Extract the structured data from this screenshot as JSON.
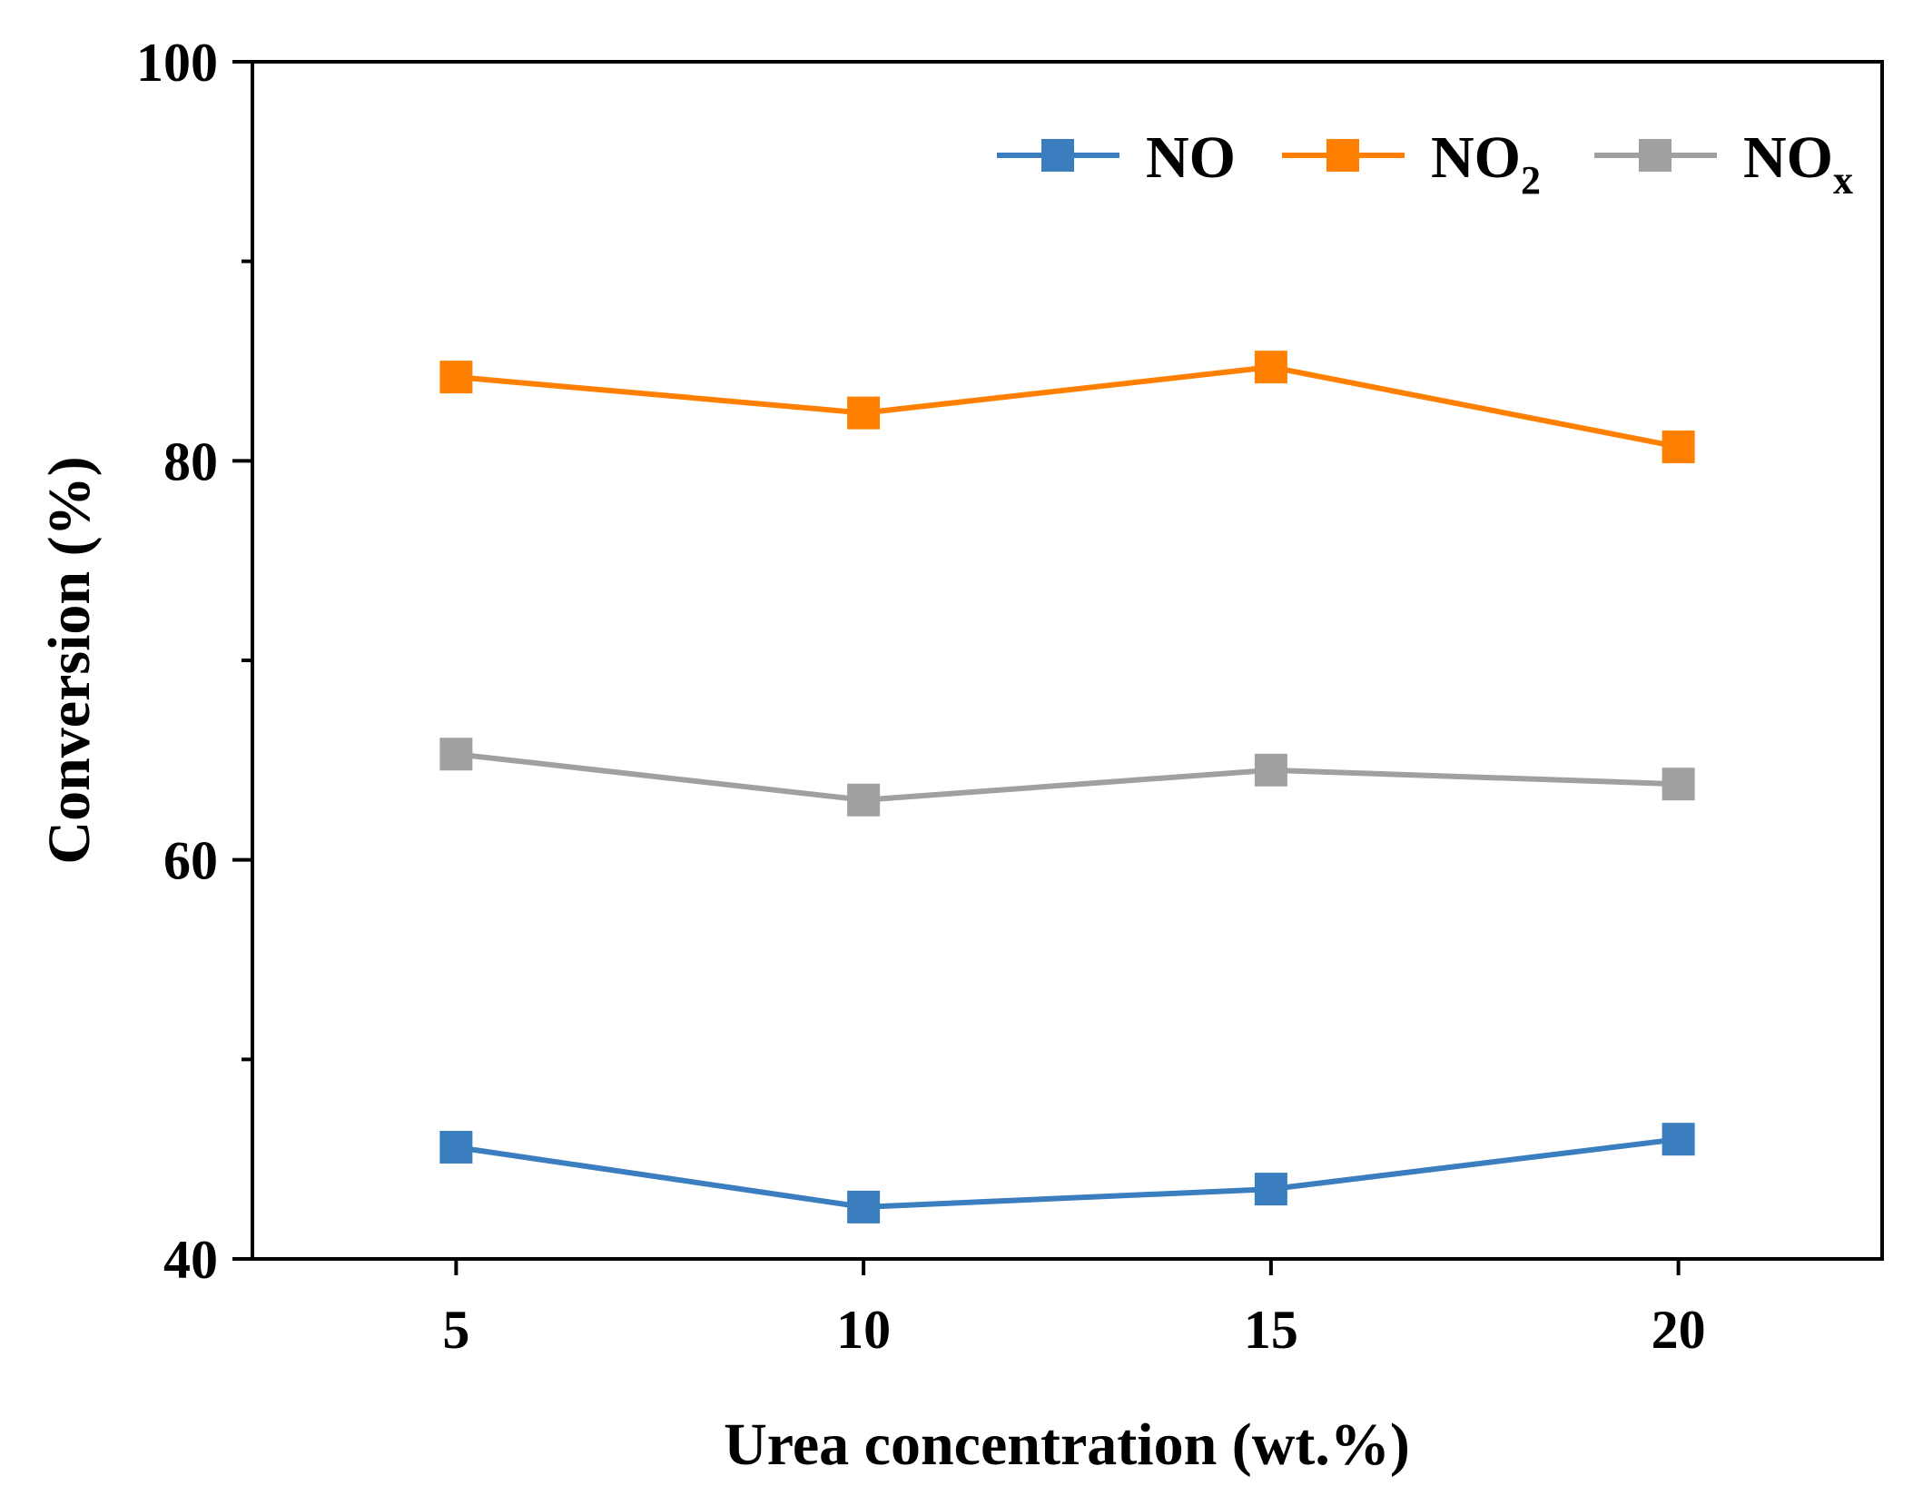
{
  "chart_data": {
    "type": "line",
    "title": "",
    "xlabel": "Urea concentration (wt.%)",
    "ylabel": "Conversion (%)",
    "x": [
      5,
      10,
      15,
      20
    ],
    "xticks": [
      5,
      10,
      15,
      20
    ],
    "xlim": [
      2.5,
      22.5
    ],
    "yticks": [
      40,
      60,
      80,
      100
    ],
    "yminor": [
      50,
      70,
      90
    ],
    "ylim": [
      40,
      100
    ],
    "grid": false,
    "legend_position": "top-right",
    "series": [
      {
        "name": "NO",
        "base": "NO",
        "sub": "",
        "color": "#3a7ebf",
        "marker": "square",
        "values": [
          45.6,
          42.6,
          43.5,
          46.0
        ]
      },
      {
        "name": "NO2",
        "base": "NO",
        "sub": "2",
        "color": "#ff8000",
        "marker": "square",
        "values": [
          84.2,
          82.4,
          84.7,
          80.7
        ]
      },
      {
        "name": "NOx",
        "base": "NO",
        "sub": "x",
        "color": "#a0a0a0",
        "marker": "square",
        "values": [
          65.3,
          63.0,
          64.5,
          63.8
        ]
      }
    ]
  }
}
